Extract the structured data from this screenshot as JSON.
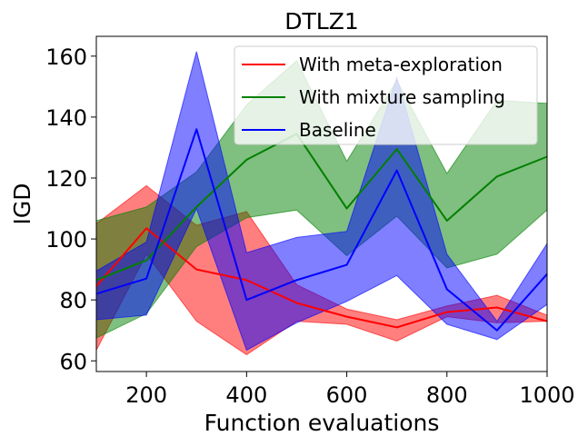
{
  "chart_data": {
    "type": "line",
    "title": "DTLZ1",
    "xlabel": "Function evaluations",
    "ylabel": "IGD",
    "xlim": [
      100,
      1000
    ],
    "ylim": [
      56.5,
      166.5
    ],
    "xticks": [
      200,
      400,
      600,
      800,
      1000
    ],
    "yticks": [
      60,
      80,
      100,
      120,
      140,
      160
    ],
    "x": [
      100,
      200,
      300,
      400,
      500,
      600,
      700,
      800,
      900,
      1000
    ],
    "legend_position": "top-right",
    "series": [
      {
        "name": "With meta-exploration",
        "color": "#ff0000",
        "fill_alpha": 0.5,
        "values": [
          84.5,
          103.5,
          90.0,
          86.5,
          79.0,
          74.5,
          71.0,
          76.0,
          77.5,
          73.0
        ],
        "upper": [
          105.0,
          117.5,
          104.5,
          109.0,
          85.0,
          77.0,
          73.5,
          78.0,
          81.5,
          75.0
        ],
        "lower": [
          63.5,
          95.0,
          73.0,
          62.0,
          73.0,
          72.0,
          66.5,
          74.5,
          72.5,
          73.0
        ]
      },
      {
        "name": "With mixture sampling",
        "color": "#008000",
        "fill_alpha": 0.5,
        "values": [
          86.5,
          93.0,
          110.5,
          126.0,
          134.5,
          110.0,
          129.5,
          106.0,
          120.5,
          127.0
        ],
        "upper": [
          106.0,
          110.5,
          122.0,
          144.0,
          158.5,
          125.5,
          152.0,
          121.5,
          145.5,
          144.5
        ],
        "lower": [
          67.5,
          75.5,
          97.5,
          107.0,
          109.5,
          94.5,
          107.5,
          90.5,
          95.0,
          109.5
        ]
      },
      {
        "name": "Baseline",
        "color": "#0000ff",
        "fill_alpha": 0.5,
        "values": [
          82.0,
          87.0,
          136.0,
          80.0,
          86.5,
          91.5,
          122.5,
          83.5,
          70.0,
          88.5
        ],
        "upper": [
          89.5,
          99.0,
          161.5,
          95.5,
          100.5,
          102.5,
          153.0,
          95.0,
          73.0,
          98.5
        ],
        "lower": [
          73.5,
          75.0,
          110.0,
          63.5,
          72.5,
          79.5,
          88.0,
          72.0,
          67.0,
          78.5
        ]
      }
    ]
  }
}
